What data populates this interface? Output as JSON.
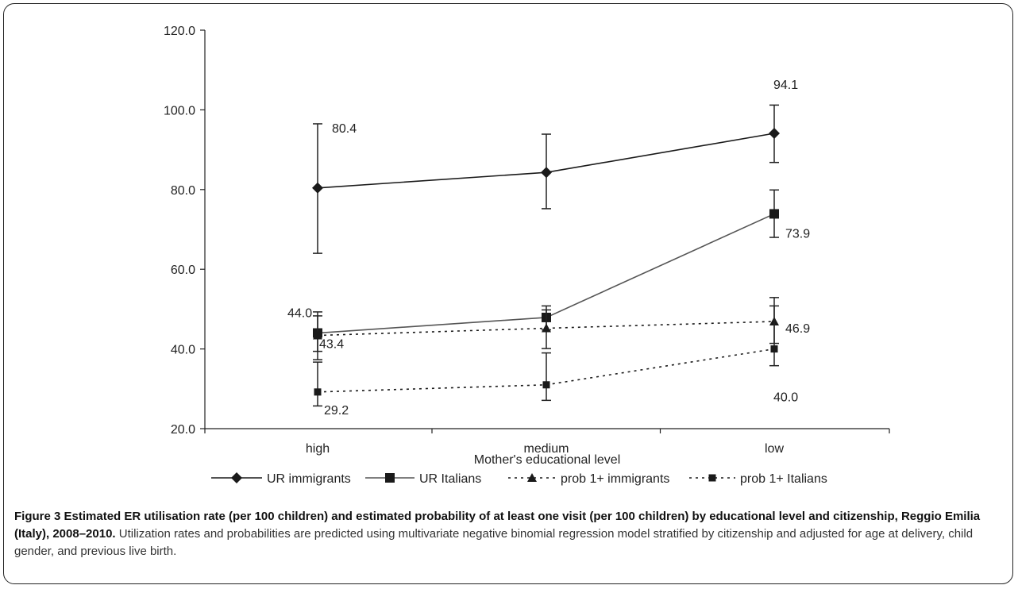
{
  "chart_data": {
    "type": "line",
    "categories": [
      "high",
      "medium",
      "low"
    ],
    "xlabel": "Mother's educational level",
    "ylabel": "",
    "ylim": [
      20.0,
      120.0
    ],
    "yticks": [
      "20.0",
      "40.0",
      "60.0",
      "80.0",
      "100.0",
      "120.0"
    ],
    "grid": false,
    "legend_position": "bottom",
    "series": [
      {
        "name": "UR immigrants",
        "style": "solid",
        "color": "#1a1a1a",
        "marker": "diamond",
        "values": [
          80.4,
          84.3,
          94.1
        ],
        "err_low": [
          64.0,
          75.2,
          86.8
        ],
        "err_high": [
          96.5,
          93.9,
          101.2
        ],
        "labels": [
          "80.4",
          "",
          "94.1"
        ]
      },
      {
        "name": "UR Italians",
        "style": "solid",
        "color": "#555555",
        "marker": "square",
        "values": [
          44.0,
          47.9,
          73.9
        ],
        "err_low": [
          37.3,
          44.8,
          68.0
        ],
        "err_high": [
          49.3,
          50.8,
          79.9
        ],
        "labels": [
          "44.0",
          "",
          "73.9"
        ]
      },
      {
        "name": "prob 1+ immigrants",
        "style": "dotted",
        "color": "#1a1a1a",
        "marker": "triangle",
        "values": [
          43.4,
          45.2,
          46.9
        ],
        "err_low": [
          39.4,
          40.1,
          41.4
        ],
        "err_high": [
          48.3,
          49.8,
          52.9
        ],
        "labels": [
          "43.4",
          "",
          "46.9"
        ]
      },
      {
        "name": "prob 1+ Italians",
        "style": "dotted",
        "color": "#1a1a1a",
        "marker": "smallsquare",
        "values": [
          29.2,
          31.0,
          40.0
        ],
        "err_low": [
          25.7,
          27.1,
          35.8
        ],
        "err_high": [
          36.7,
          39.0,
          50.8
        ],
        "labels": [
          "29.2",
          "",
          "40.0"
        ]
      }
    ]
  },
  "caption": {
    "title": "Figure 3 Estimated ER utilisation rate (per 100 children) and estimated probability of at least one visit (per 100 children) by educational level and citizenship, Reggio Emilia (Italy), 2008–2010.",
    "body": "Utilization rates and probabilities are predicted using multivariate negative binomial regression model stratified by citizenship and adjusted for age at delivery, child gender, and previous live birth."
  }
}
